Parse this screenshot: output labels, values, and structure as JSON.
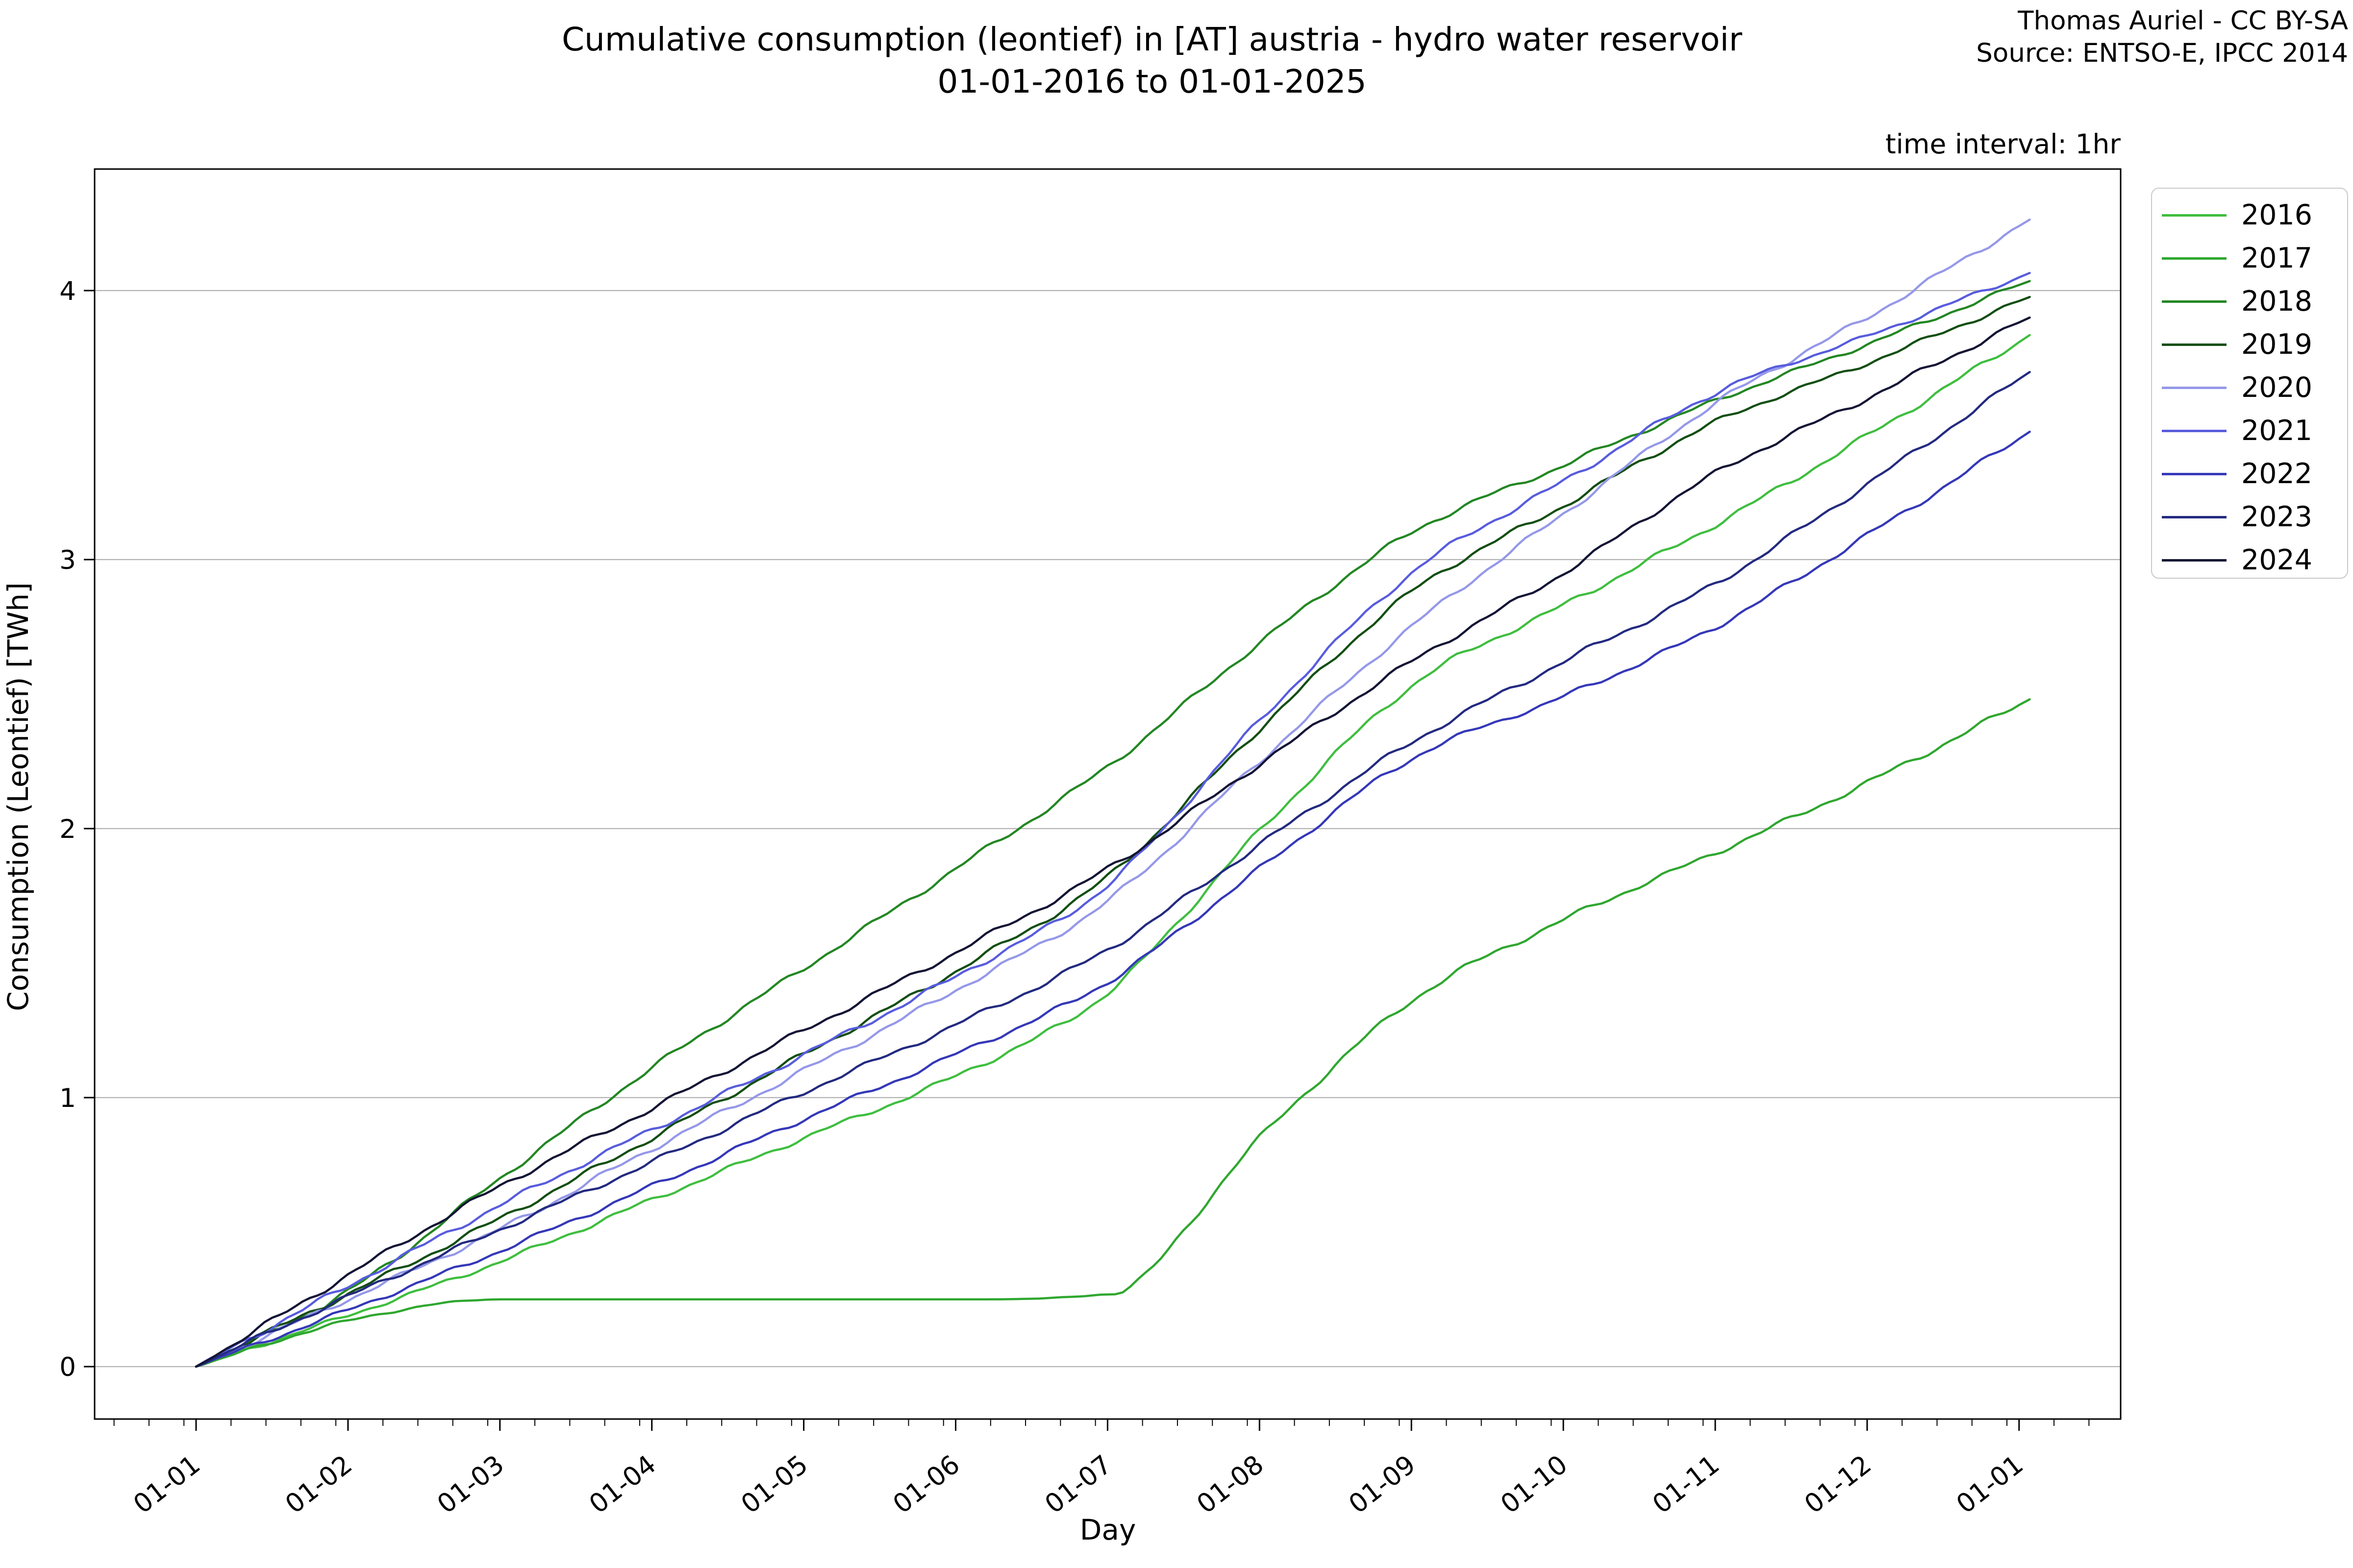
{
  "header": {
    "title_line1": "Cumulative consumption (leontief) in [AT] austria - hydro water reservoir",
    "title_line2": "01-01-2016 to 01-01-2025",
    "attribution_line1": "Thomas Auriel - CC BY-SA",
    "attribution_line2": "Source: ENTSO-E, IPCC 2014",
    "note": "time interval: 1hr"
  },
  "chart_data": {
    "type": "line",
    "title": "Cumulative consumption (leontief) in [AT] austria - hydro water reservoir 01-01-2016 to 01-01-2025",
    "xlabel": "Day",
    "ylabel": "Consumption (Leontief) [TWh]",
    "note": "time interval: 1hr",
    "x_unit": "months from Jan 1",
    "x": [
      0,
      1,
      2,
      3,
      4,
      5,
      6,
      7,
      8,
      9,
      10,
      11,
      12
    ],
    "x_tick_labels": [
      "01-01",
      "01-02",
      "01-03",
      "01-04",
      "01-05",
      "01-06",
      "01-07",
      "01-08",
      "01-09",
      "01-10",
      "01-11",
      "01-12",
      "01-01"
    ],
    "y_tick_labels": [
      "0",
      "1",
      "2",
      "3",
      "4"
    ],
    "y_ticks": [
      0,
      1,
      2,
      3,
      4
    ],
    "ylim": [
      -0.195,
      4.45
    ],
    "grid": "horizontal",
    "legend_position": "upper right outside",
    "grid_color": "#b2b2b2",
    "axis_color": "#000000",
    "annotation_2017": "flat segment at 0.25 TWh (data gap) from mid-Feb to early July",
    "series": [
      {
        "name": "2016",
        "color": "#3fbe3f",
        "values": [
          0,
          0.19,
          0.39,
          0.62,
          0.85,
          1.08,
          1.39,
          1.99,
          2.53,
          2.83,
          3.13,
          3.46,
          3.81
        ]
      },
      {
        "name": "2017",
        "color": "#2fa72f",
        "values": [
          0,
          0.17,
          0.25,
          0.25,
          0.25,
          0.25,
          0.27,
          0.85,
          1.36,
          1.66,
          1.91,
          2.17,
          2.46
        ]
      },
      {
        "name": "2018",
        "color": "#238723",
        "values": [
          0,
          0.28,
          0.7,
          1.11,
          1.48,
          1.85,
          2.23,
          2.69,
          3.1,
          3.35,
          3.59,
          3.8,
          4.02
        ]
      },
      {
        "name": "2019",
        "color": "#134f13",
        "values": [
          0,
          0.27,
          0.55,
          0.85,
          1.16,
          1.47,
          1.82,
          2.37,
          2.88,
          3.2,
          3.51,
          3.73,
          3.96
        ]
      },
      {
        "name": "2020",
        "color": "#9598e8",
        "values": [
          0,
          0.25,
          0.51,
          0.81,
          1.1,
          1.4,
          1.73,
          2.25,
          2.75,
          3.17,
          3.58,
          3.9,
          4.24
        ]
      },
      {
        "name": "2021",
        "color": "#585cdd",
        "values": [
          0,
          0.3,
          0.6,
          0.88,
          1.16,
          1.45,
          1.79,
          2.4,
          2.95,
          3.29,
          3.62,
          3.83,
          4.05
        ]
      },
      {
        "name": "2022",
        "color": "#3538b8",
        "values": [
          0,
          0.21,
          0.43,
          0.67,
          0.92,
          1.16,
          1.43,
          1.85,
          2.26,
          2.49,
          2.75,
          3.09,
          3.45
        ]
      },
      {
        "name": "2023",
        "color": "#232a80",
        "values": [
          0,
          0.26,
          0.51,
          0.76,
          1.02,
          1.27,
          1.55,
          1.94,
          2.32,
          2.62,
          2.91,
          3.28,
          3.67
        ]
      },
      {
        "name": "2024",
        "color": "#141535",
        "values": [
          0,
          0.34,
          0.67,
          0.96,
          1.25,
          1.54,
          1.85,
          2.24,
          2.62,
          2.95,
          3.32,
          3.6,
          3.88
        ]
      }
    ]
  }
}
